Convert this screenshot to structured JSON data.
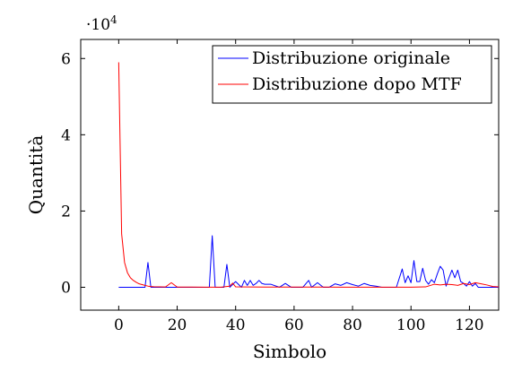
{
  "chart_data": {
    "type": "line",
    "title": "",
    "xlabel": "Simbolo",
    "ylabel": "Quantità",
    "y_multiplier": {
      "base": "·10",
      "exponent": "4"
    },
    "xlim": [
      -13,
      130
    ],
    "ylim": [
      -6000,
      65000
    ],
    "x_ticks": [
      0,
      20,
      40,
      60,
      80,
      100,
      120
    ],
    "x_tick_labels": [
      "0",
      "20",
      "40",
      "60",
      "80",
      "100",
      "120"
    ],
    "y_ticks": [
      0,
      20000,
      40000,
      60000
    ],
    "y_tick_labels": [
      "0",
      "2",
      "4",
      "6"
    ],
    "grid": false,
    "legend_position": "top-right",
    "series": [
      {
        "name": "Distribuzione originale",
        "color": "#0000ff",
        "x": [
          0,
          9,
          10,
          11,
          31,
          32,
          33,
          36,
          37,
          38,
          40,
          42,
          43,
          44,
          45,
          46,
          47,
          48,
          49,
          50,
          52,
          55,
          57,
          59,
          63,
          65,
          66,
          68,
          70,
          72,
          74,
          76,
          78,
          80,
          82,
          84,
          86,
          88,
          90,
          95,
          97,
          98,
          99,
          100,
          101,
          102,
          103,
          104,
          105,
          106,
          107,
          108,
          109,
          110,
          111,
          112,
          113,
          114,
          115,
          116,
          117,
          118,
          119,
          120,
          121,
          122,
          123,
          124,
          126,
          128,
          130
        ],
        "y": [
          0,
          0,
          6500,
          0,
          0,
          13500,
          0,
          0,
          6000,
          0,
          1500,
          0,
          1800,
          500,
          1800,
          500,
          1000,
          1800,
          1000,
          800,
          800,
          0,
          1000,
          0,
          0,
          1800,
          0,
          1200,
          0,
          0,
          900,
          500,
          1200,
          700,
          300,
          1000,
          500,
          300,
          0,
          0,
          4800,
          1200,
          3000,
          1200,
          7000,
          1500,
          1500,
          5000,
          1800,
          800,
          2000,
          1200,
          3500,
          5500,
          4500,
          300,
          2500,
          4500,
          2500,
          4500,
          1500,
          1000,
          300,
          1500,
          300,
          1000,
          0,
          0,
          0,
          0,
          0
        ]
      },
      {
        "name": "Distribuzione dopo MTF",
        "color": "#ff0000",
        "x": [
          0,
          1,
          2,
          3,
          4,
          5,
          6,
          7,
          8,
          9,
          10,
          11,
          12,
          14,
          16,
          18,
          20,
          25,
          30,
          35,
          38,
          39,
          40,
          45,
          50,
          60,
          70,
          80,
          90,
          100,
          105,
          108,
          110,
          112,
          114,
          116,
          118,
          120,
          122,
          124,
          126,
          128,
          130
        ],
        "y": [
          59000,
          14000,
          6500,
          3800,
          2500,
          1800,
          1300,
          900,
          700,
          500,
          300,
          200,
          150,
          100,
          80,
          1200,
          50,
          40,
          30,
          20,
          300,
          1100,
          100,
          80,
          60,
          50,
          40,
          30,
          30,
          20,
          100,
          800,
          600,
          800,
          700,
          500,
          1000,
          700,
          1200,
          900,
          600,
          200,
          100
        ]
      }
    ]
  }
}
